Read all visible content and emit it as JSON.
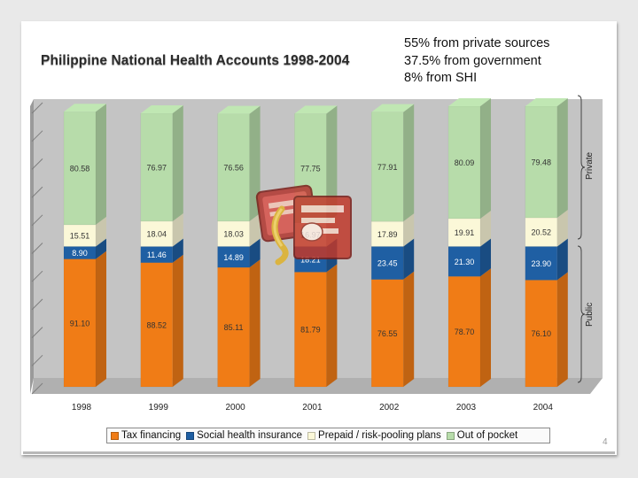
{
  "slide": {
    "title": "Philippine National Health Accounts 1998-2004",
    "notes": [
      "55% from private sources",
      "37.5% from government",
      "8% from SHI"
    ],
    "page_number": "4"
  },
  "colors": {
    "tax_financing": "#f07c16",
    "social_health_insurance": "#1f5fa3",
    "prepaid": "#fbf8d8",
    "out_of_pocket": "#b7dcaa",
    "wall": "#c4c4c4"
  },
  "chart_data": {
    "type": "bar",
    "stacked": true,
    "normalized": true,
    "title": "Philippine National Health Accounts 1998-2004",
    "categories": [
      "1998",
      "1999",
      "2000",
      "2001",
      "2002",
      "2003",
      "2004"
    ],
    "series": [
      {
        "name": "Tax financing",
        "key": "tax",
        "values": [
          91.1,
          88.52,
          85.11,
          81.79,
          76.55,
          78.7,
          76.1
        ]
      },
      {
        "name": "Social health insurance",
        "key": "shi",
        "values": [
          8.9,
          11.46,
          14.89,
          18.21,
          23.45,
          21.3,
          23.9
        ]
      },
      {
        "name": "Prepaid / risk-pooling plans",
        "key": "prepaid",
        "values": [
          15.51,
          18.04,
          18.03,
          16.97,
          17.89,
          19.91,
          20.52
        ]
      },
      {
        "name": "Out of pocket",
        "key": "oop",
        "values": [
          80.58,
          76.97,
          76.56,
          77.75,
          77.91,
          80.09,
          79.48
        ]
      }
    ],
    "data_labels": {
      "tax": [
        "91.10",
        "88.52",
        "85.11",
        "81.79",
        "76.55",
        "78.70",
        "76.10"
      ],
      "shi": [
        "8.90",
        "11.46",
        "14.89",
        "18.21",
        "23.45",
        "21.30",
        "23.90"
      ],
      "prepaid": [
        "15.51",
        "18.04",
        "18.03",
        "16.97",
        "17.89",
        "19.91",
        "20.52"
      ],
      "oop": [
        "80.58",
        "76.97",
        "76.56",
        "77.75",
        "77.91",
        "80.09",
        "79.48"
      ]
    },
    "groups": [
      {
        "label": "Private",
        "series": [
          "prepaid",
          "oop"
        ]
      },
      {
        "label": "Public",
        "series": [
          "tax",
          "shi"
        ]
      }
    ],
    "ylim": [
      0,
      200
    ],
    "grid": true,
    "legend_position": "bottom"
  }
}
